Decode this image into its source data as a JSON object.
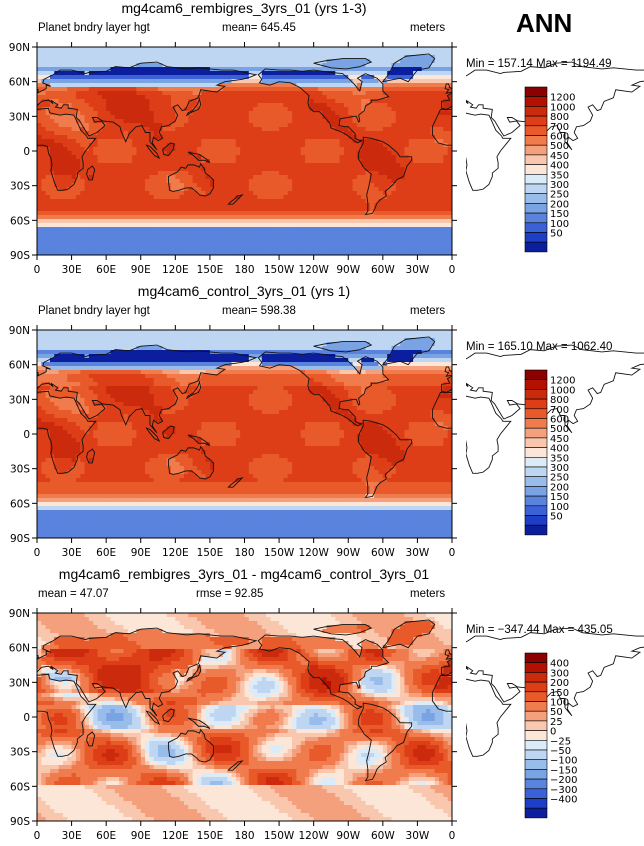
{
  "season": "ANN",
  "chart_data": [
    {
      "type": "heatmap",
      "title": "mg4cam6_rembigres_3yrs_01 (yrs 1-3)",
      "left_label": "Planet bndry layer hgt",
      "center_label": "mean= 645.45",
      "units": "meters",
      "min_max": "Min = 157.14 Max = 1194.49",
      "x_ticks": [
        "0",
        "30E",
        "60E",
        "90E",
        "120E",
        "150E",
        "180",
        "150W",
        "120W",
        "90W",
        "60W",
        "30W",
        "0"
      ],
      "y_ticks": [
        "90N",
        "60N",
        "30N",
        "0",
        "30S",
        "60S",
        "90S"
      ],
      "colorbar_labels": [
        "1200",
        "1000",
        "800",
        "700",
        "600",
        "500",
        "450",
        "400",
        "350",
        "300",
        "250",
        "200",
        "150",
        "100",
        "50"
      ],
      "colors": [
        "#8b0000",
        "#b31000",
        "#cc2a0c",
        "#dd3e18",
        "#e85a2a",
        "#f07b4c",
        "#f5a07c",
        "#f9c7ad",
        "#fbe6d8",
        "#dcebf8",
        "#bfd6f3",
        "#99bdeb",
        "#7aa3e4",
        "#5983dd",
        "#3a62d6",
        "#1d3ec6",
        "#0b1f9e"
      ],
      "field": "pbl"
    },
    {
      "type": "heatmap",
      "title": "mg4cam6_control_3yrs_01 (yrs 1)",
      "left_label": "Planet bndry layer hgt",
      "center_label": "mean= 598.38",
      "units": "meters",
      "min_max": "Min = 165.10 Max = 1062.40",
      "x_ticks": [
        "0",
        "30E",
        "60E",
        "90E",
        "120E",
        "150E",
        "180",
        "150W",
        "120W",
        "90W",
        "60W",
        "30W",
        "0"
      ],
      "y_ticks": [
        "90N",
        "60N",
        "30N",
        "0",
        "30S",
        "60S",
        "90S"
      ],
      "colorbar_labels": [
        "1200",
        "1000",
        "800",
        "700",
        "600",
        "500",
        "450",
        "400",
        "350",
        "300",
        "250",
        "200",
        "150",
        "100",
        "50"
      ],
      "colors": [
        "#8b0000",
        "#b31000",
        "#cc2a0c",
        "#dd3e18",
        "#e85a2a",
        "#f07b4c",
        "#f5a07c",
        "#f9c7ad",
        "#fbe6d8",
        "#dcebf8",
        "#bfd6f3",
        "#99bdeb",
        "#7aa3e4",
        "#5983dd",
        "#3a62d6",
        "#1d3ec6",
        "#0b1f9e"
      ],
      "field": "pbl2"
    },
    {
      "type": "heatmap",
      "title": "mg4cam6_rembigres_3yrs_01 - mg4cam6_control_3yrs_01",
      "left_label": "mean = 47.07",
      "center_label": "rmse = 92.85",
      "units": "meters",
      "min_max": "Min = −347.44 Max = 435.05",
      "x_ticks": [
        "0",
        "30E",
        "60E",
        "90E",
        "120E",
        "150E",
        "180",
        "150W",
        "120W",
        "90W",
        "60W",
        "30W",
        "0"
      ],
      "y_ticks": [
        "90N",
        "60N",
        "30N",
        "0",
        "30S",
        "60S",
        "90S"
      ],
      "colorbar_labels": [
        "400",
        "300",
        "200",
        "150",
        "100",
        "50",
        "25",
        "0",
        "−25",
        "−50",
        "−100",
        "−150",
        "−200",
        "−300",
        "−400"
      ],
      "colors": [
        "#8b0000",
        "#b31000",
        "#cc2a0c",
        "#dd3e18",
        "#e85a2a",
        "#f07b4c",
        "#f5a07c",
        "#f9c7ad",
        "#fbe6d8",
        "#dcebf8",
        "#bfd6f3",
        "#99bdeb",
        "#7aa3e4",
        "#5983dd",
        "#3a62d6",
        "#1d3ec6",
        "#0b1f9e"
      ],
      "field": "diff"
    }
  ]
}
